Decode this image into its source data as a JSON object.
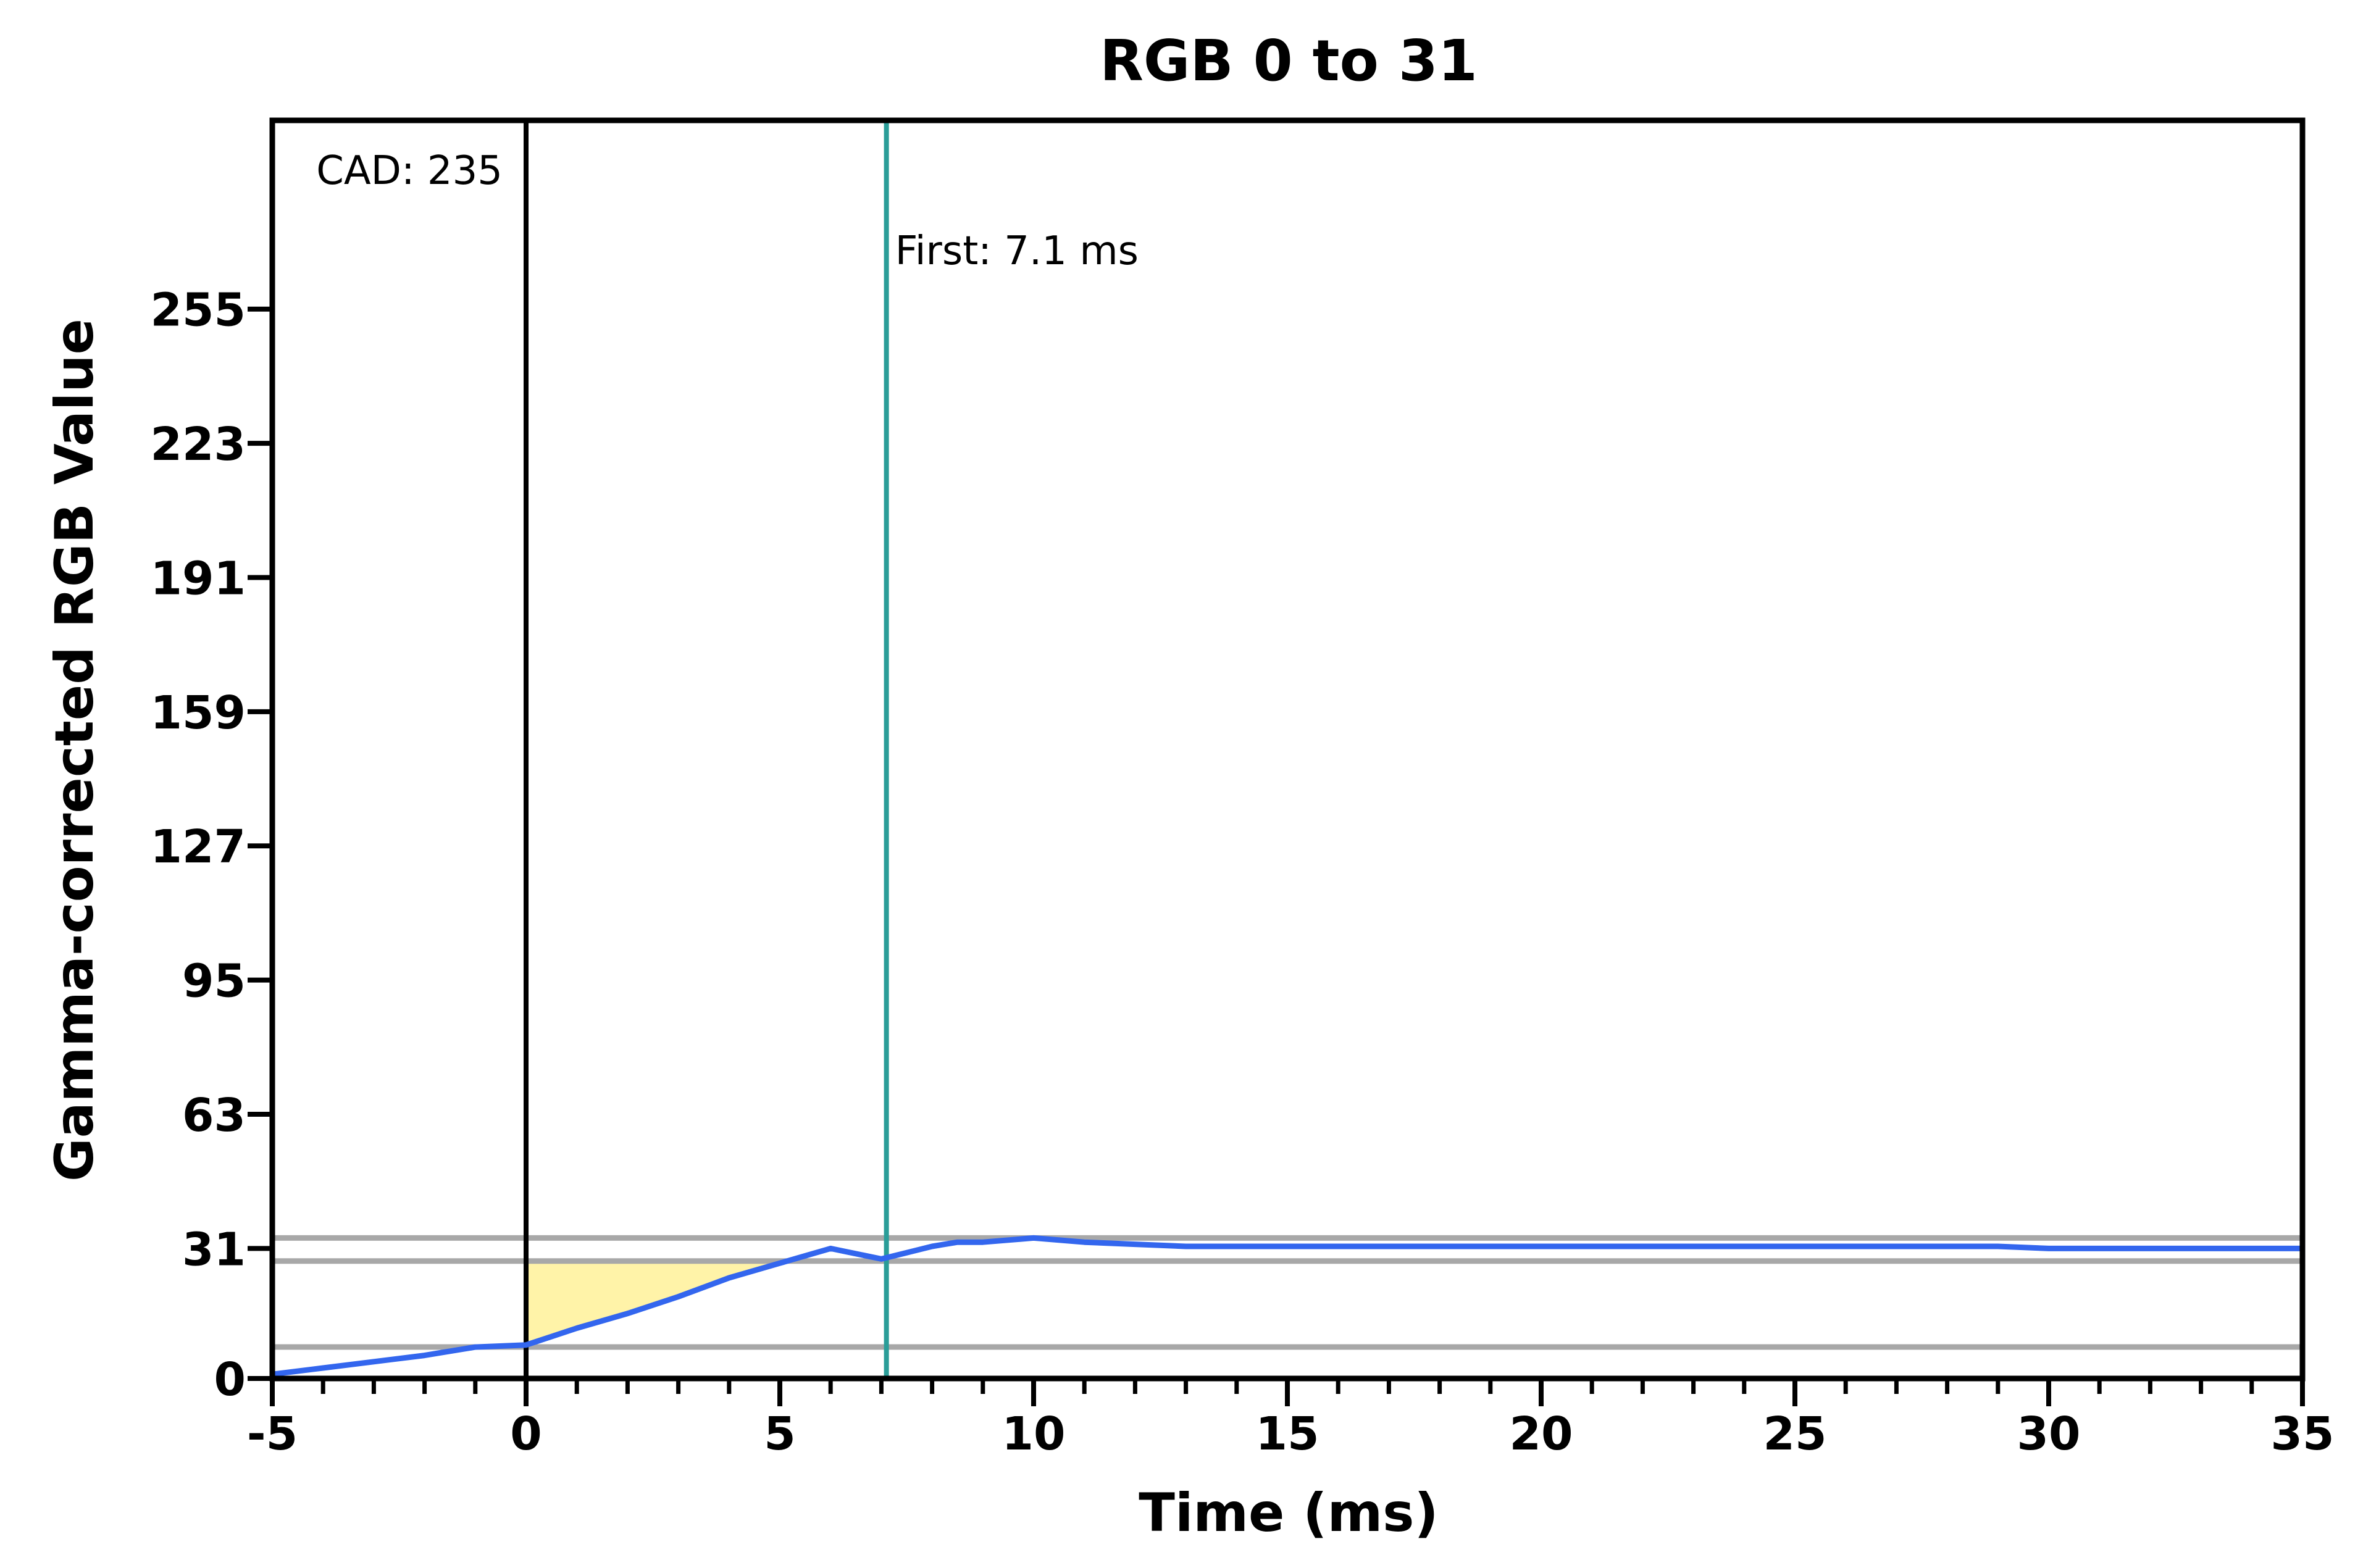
{
  "chart_data": {
    "type": "line",
    "title": "RGB 0 to 31",
    "xlabel": "Time (ms)",
    "ylabel": "Gamma-corrected RGB Value",
    "xlim": [
      -5,
      35
    ],
    "ylim": [
      0,
      300
    ],
    "x_ticks": [
      -5,
      0,
      5,
      10,
      15,
      20,
      25,
      30,
      35
    ],
    "x_tick_labels": [
      "-5",
      "0",
      "5",
      "10",
      "15",
      "20",
      "25",
      "30",
      "35"
    ],
    "x_minor_step": 1,
    "y_ticks": [
      0,
      31,
      63,
      95,
      127,
      159,
      191,
      223,
      255
    ],
    "y_tick_labels": [
      "0",
      "31",
      "63",
      "95",
      "127",
      "159",
      "191",
      "223",
      "255"
    ],
    "grid": false,
    "series": [
      {
        "color": "#3366ee",
        "x": [
          -5,
          -4,
          -3,
          -2,
          -1,
          0,
          1,
          2,
          3,
          4,
          5,
          6,
          7,
          7.5,
          8,
          8.5,
          9,
          9.5,
          10,
          11,
          12,
          13,
          14,
          15,
          16,
          17,
          18,
          19,
          20,
          21,
          22,
          23,
          24,
          25,
          26,
          27,
          28,
          29,
          30,
          31,
          32,
          33,
          34,
          35
        ],
        "y": [
          1,
          2.5,
          4,
          5.5,
          7.5,
          8,
          12,
          15.5,
          19.5,
          24,
          27.5,
          31,
          28.5,
          30,
          31.5,
          32.5,
          32.5,
          33,
          33.5,
          32.5,
          32,
          31.5,
          31.5,
          31.5,
          31.5,
          31.5,
          31.5,
          31.5,
          31.5,
          31.5,
          31.5,
          31.5,
          31.5,
          31.5,
          31.5,
          31.5,
          31.5,
          31.5,
          31,
          31,
          31,
          31,
          31,
          31
        ]
      }
    ],
    "reference_lines": {
      "horizontal": [
        7.5,
        28,
        33.5
      ],
      "color": "#a8a8a8"
    },
    "vertical_markers": [
      {
        "x": 0,
        "label": "CAD: 235",
        "color": "#000000"
      },
      {
        "x": 7.1,
        "label": "First: 7.1 ms",
        "color": "#2a9d98"
      }
    ],
    "shaded_region": {
      "x_start": 0,
      "x_end": 7.1,
      "y_top": 28,
      "color": "#fff3a8"
    }
  }
}
